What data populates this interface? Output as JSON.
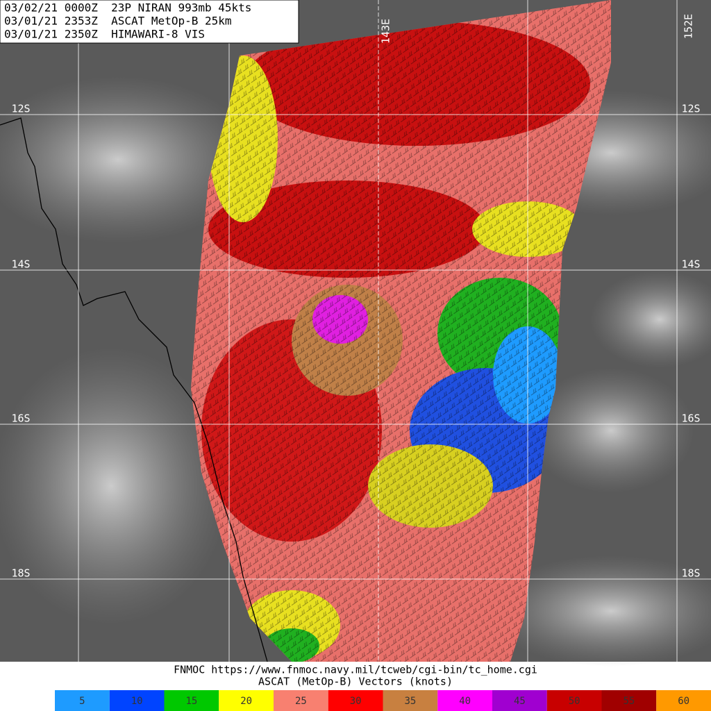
{
  "header": {
    "lines": [
      "03/02/21 0000Z  23P NIRAN 993mb 45kts",
      "03/01/21 2353Z  ASCAT MetOp-B 25km",
      "03/01/21 2350Z  HIMAWARI-8 VIS"
    ]
  },
  "map": {
    "lat_labels": [
      "12S",
      "14S",
      "16S",
      "18S"
    ],
    "lon_labels": [
      "143E",
      "152E"
    ]
  },
  "footer": {
    "source": "FNMOC https://www.fnmoc.navy.mil/tcweb/cgi-bin/tc_home.cgi",
    "legend_title": "ASCAT (MetOp-B) Vectors (knots)"
  },
  "legend": {
    "items": [
      {
        "value": 5,
        "color": "#1e9bff"
      },
      {
        "value": 10,
        "color": "#0044ff"
      },
      {
        "value": 15,
        "color": "#00c800"
      },
      {
        "value": 20,
        "color": "#ffff00"
      },
      {
        "value": 25,
        "color": "#f88070"
      },
      {
        "value": 30,
        "color": "#ff0000"
      },
      {
        "value": 35,
        "color": "#c88040"
      },
      {
        "value": 40,
        "color": "#ff00ff"
      },
      {
        "value": 45,
        "color": "#a000d0"
      },
      {
        "value": 50,
        "color": "#c80000"
      },
      {
        "value": 55,
        "color": "#a00000"
      },
      {
        "value": 60,
        "color": "#ff9900"
      }
    ]
  }
}
